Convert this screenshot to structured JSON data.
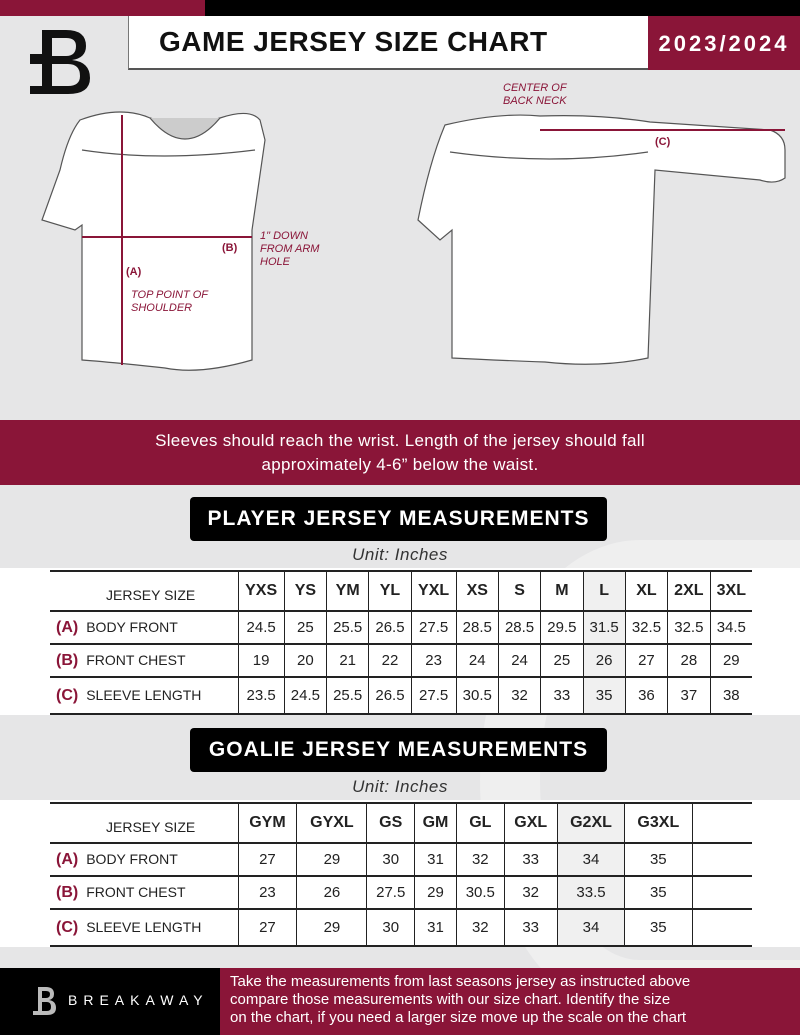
{
  "header": {
    "title": "GAME JERSEY SIZE CHART",
    "season": "2023/2024"
  },
  "diagram": {
    "center_back_neck": "CENTER OF BACK NECK",
    "b_label": "(B)",
    "b_note": "1\" DOWN FROM ARM HOLE",
    "a_label": "(A)",
    "a_note": "TOP POINT OF SHOULDER",
    "c_label": "(C)"
  },
  "colors": {
    "accent": "#8a1538",
    "dark": "#000000"
  },
  "notice": {
    "line1": "Sleeves should reach the wrist. Length of the jersey should fall",
    "line2": "approximately 4-6” below the waist."
  },
  "player": {
    "title": "PLAYER JERSEY MEASUREMENTS",
    "unit": "Unit: Inches",
    "size_label": "JERSEY SIZE",
    "sizes": [
      "YXS",
      "YS",
      "YM",
      "YL",
      "YXL",
      "XS",
      "S",
      "M",
      "L",
      "XL",
      "2XL",
      "3XL"
    ],
    "rows": [
      {
        "code": "(A)",
        "label": "BODY FRONT",
        "values": [
          "24.5",
          "25",
          "25.5",
          "26.5",
          "27.5",
          "28.5",
          "28.5",
          "29.5",
          "31.5",
          "32.5",
          "32.5",
          "34.5"
        ]
      },
      {
        "code": "(B)",
        "label": "FRONT CHEST",
        "values": [
          "19",
          "20",
          "21",
          "22",
          "23",
          "24",
          "24",
          "25",
          "26",
          "27",
          "28",
          "29"
        ]
      },
      {
        "code": "(C)",
        "label": "SLEEVE LENGTH",
        "values": [
          "23.5",
          "24.5",
          "25.5",
          "26.5",
          "27.5",
          "30.5",
          "32",
          "33",
          "35",
          "36",
          "37",
          "38"
        ]
      }
    ]
  },
  "goalie": {
    "title": "GOALIE JERSEY MEASUREMENTS",
    "unit": "Unit: Inches",
    "size_label": "JERSEY SIZE",
    "sizes": [
      "GYM",
      "GYXL",
      "GS",
      "GM",
      "GL",
      "GXL",
      "G2XL",
      "G3XL",
      ""
    ],
    "rows": [
      {
        "code": "(A)",
        "label": "BODY FRONT",
        "values": [
          "27",
          "29",
          "30",
          "31",
          "32",
          "33",
          "34",
          "35",
          ""
        ]
      },
      {
        "code": "(B)",
        "label": "FRONT CHEST",
        "values": [
          "23",
          "26",
          "27.5",
          "29",
          "30.5",
          "32",
          "33.5",
          "35",
          ""
        ]
      },
      {
        "code": "(C)",
        "label": "SLEEVE LENGTH",
        "values": [
          "27",
          "29",
          "30",
          "31",
          "32",
          "33",
          "34",
          "35",
          ""
        ]
      }
    ]
  },
  "footer": {
    "brand": "BREAKAWAY",
    "text_lines": [
      "Take the measurements from last seasons jersey as instructed above",
      "compare those measurements  with our size chart. Identify the size",
      "on the chart, if you need a larger size move up the scale on the chart"
    ]
  }
}
